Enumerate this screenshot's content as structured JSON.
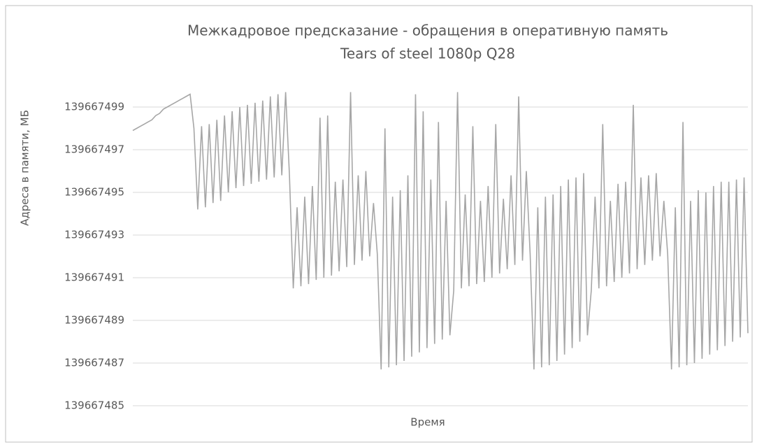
{
  "chart_data": {
    "type": "line",
    "title": "Межкадровое предсказание - обращения в оперативную память",
    "subtitle": "Tears of steel 1080p Q28",
    "y_label": "Адреса в памяти, МБ",
    "x_label": "Время",
    "ylim": [
      139667485,
      139667500
    ],
    "yticks": [
      139667485,
      139667487,
      139667489,
      139667491,
      139667493,
      139667495,
      139667497,
      139667499
    ],
    "grid": true,
    "series": [
      {
        "color": "#a6a6a6",
        "values": [
          139667497.9,
          139667498.0,
          139667498.1,
          139667498.2,
          139667498.3,
          139667498.4,
          139667498.6,
          139667498.7,
          139667498.9,
          139667499.0,
          139667499.1,
          139667499.2,
          139667499.3,
          139667499.4,
          139667499.5,
          139667499.6,
          139667498.0,
          139667494.2,
          139667498.1,
          139667494.3,
          139667498.2,
          139667494.5,
          139667498.4,
          139667494.6,
          139667498.6,
          139667495.0,
          139667498.8,
          139667495.2,
          139667499.0,
          139667495.3,
          139667499.1,
          139667495.4,
          139667499.2,
          139667495.5,
          139667499.3,
          139667495.6,
          139667499.5,
          139667495.7,
          139667499.6,
          139667495.8,
          139667499.7,
          139667495.8,
          139667490.5,
          139667494.3,
          139667490.6,
          139667494.8,
          139667490.7,
          139667495.3,
          139667490.9,
          139667498.5,
          139667491.0,
          139667498.6,
          139667491.1,
          139667495.5,
          139667491.3,
          139667495.6,
          139667491.5,
          139667499.7,
          139667491.6,
          139667495.8,
          139667491.8,
          139667496.0,
          139667492.0,
          139667494.5,
          139667492.1,
          139667486.7,
          139667498.0,
          139667486.8,
          139667494.8,
          139667486.9,
          139667495.1,
          139667487.1,
          139667495.8,
          139667487.3,
          139667499.6,
          139667487.5,
          139667498.8,
          139667487.7,
          139667495.6,
          139667487.9,
          139667498.3,
          139667488.1,
          139667494.6,
          139667488.3,
          139667490.4,
          139667499.7,
          139667490.5,
          139667494.9,
          139667490.6,
          139667498.1,
          139667490.7,
          139667494.6,
          139667490.8,
          139667495.3,
          139667491.0,
          139667498.2,
          139667491.2,
          139667494.7,
          139667491.4,
          139667495.8,
          139667491.6,
          139667499.5,
          139667491.8,
          139667496.0,
          139667492.1,
          139667486.7,
          139667494.3,
          139667486.8,
          139667494.8,
          139667486.9,
          139667494.9,
          139667487.1,
          139667495.3,
          139667487.4,
          139667495.6,
          139667487.7,
          139667495.7,
          139667488.0,
          139667495.9,
          139667488.3,
          139667490.4,
          139667494.8,
          139667490.5,
          139667498.2,
          139667490.6,
          139667494.6,
          139667490.8,
          139667495.4,
          139667491.0,
          139667495.5,
          139667491.2,
          139667499.1,
          139667491.4,
          139667495.7,
          139667491.6,
          139667495.8,
          139667491.8,
          139667495.9,
          139667492.0,
          139667494.6,
          139667492.1,
          139667486.7,
          139667494.3,
          139667486.8,
          139667498.3,
          139667486.9,
          139667494.6,
          139667487.0,
          139667495.1,
          139667487.2,
          139667495.0,
          139667487.4,
          139667495.3,
          139667487.6,
          139667495.5,
          139667487.8,
          139667495.5,
          139667488.0,
          139667495.6,
          139667488.2,
          139667495.7,
          139667488.4
        ]
      }
    ]
  }
}
